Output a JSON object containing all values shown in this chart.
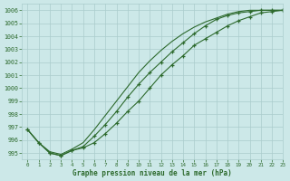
{
  "xlabel": "Graphe pression niveau de la mer (hPa)",
  "background_color": "#cce8e8",
  "grid_color": "#aacccc",
  "line_color": "#2d6a2d",
  "xlim": [
    -0.5,
    23
  ],
  "ylim": [
    994.5,
    1006.5
  ],
  "yticks": [
    995,
    996,
    997,
    998,
    999,
    1000,
    1001,
    1002,
    1003,
    1004,
    1005,
    1006
  ],
  "xticks": [
    0,
    1,
    2,
    3,
    4,
    5,
    6,
    7,
    8,
    9,
    10,
    11,
    12,
    13,
    14,
    15,
    16,
    17,
    18,
    19,
    20,
    21,
    22,
    23
  ],
  "line1_x": [
    0,
    1,
    2,
    3,
    4,
    5,
    6,
    7,
    8,
    9,
    10,
    11,
    12,
    13,
    14,
    15,
    16,
    17,
    18,
    19,
    20,
    21,
    22,
    23
  ],
  "line1_y": [
    996.8,
    995.8,
    995.0,
    994.8,
    995.2,
    995.4,
    995.8,
    996.5,
    997.3,
    998.2,
    999.0,
    1000.0,
    1001.0,
    1001.8,
    1002.5,
    1003.3,
    1003.8,
    1004.3,
    1004.8,
    1005.2,
    1005.5,
    1005.8,
    1005.9,
    1006.0
  ],
  "line2_x": [
    0,
    1,
    2,
    3,
    4,
    5,
    6,
    7,
    8,
    9,
    10,
    11,
    12,
    13,
    14,
    15,
    16,
    17,
    18,
    19,
    20,
    21,
    22,
    23
  ],
  "line2_y": [
    996.8,
    995.8,
    995.0,
    994.8,
    995.2,
    995.5,
    996.3,
    997.2,
    998.2,
    999.3,
    1000.3,
    1001.2,
    1002.0,
    1002.8,
    1003.5,
    1004.2,
    1004.8,
    1005.3,
    1005.6,
    1005.8,
    1005.9,
    1006.0,
    1006.0,
    1006.0
  ],
  "line3_x": [
    0,
    1,
    2,
    3,
    4,
    5,
    6,
    7,
    8,
    9,
    10,
    11,
    12,
    13,
    14,
    15,
    16,
    17,
    18,
    19,
    20,
    21,
    22,
    23
  ],
  "line3_y": [
    996.8,
    995.8,
    995.1,
    994.9,
    995.3,
    995.8,
    996.8,
    997.9,
    999.0,
    1000.1,
    1001.2,
    1002.1,
    1002.9,
    1003.6,
    1004.2,
    1004.7,
    1005.1,
    1005.4,
    1005.7,
    1005.9,
    1006.0,
    1006.0,
    1006.0,
    1006.0
  ]
}
